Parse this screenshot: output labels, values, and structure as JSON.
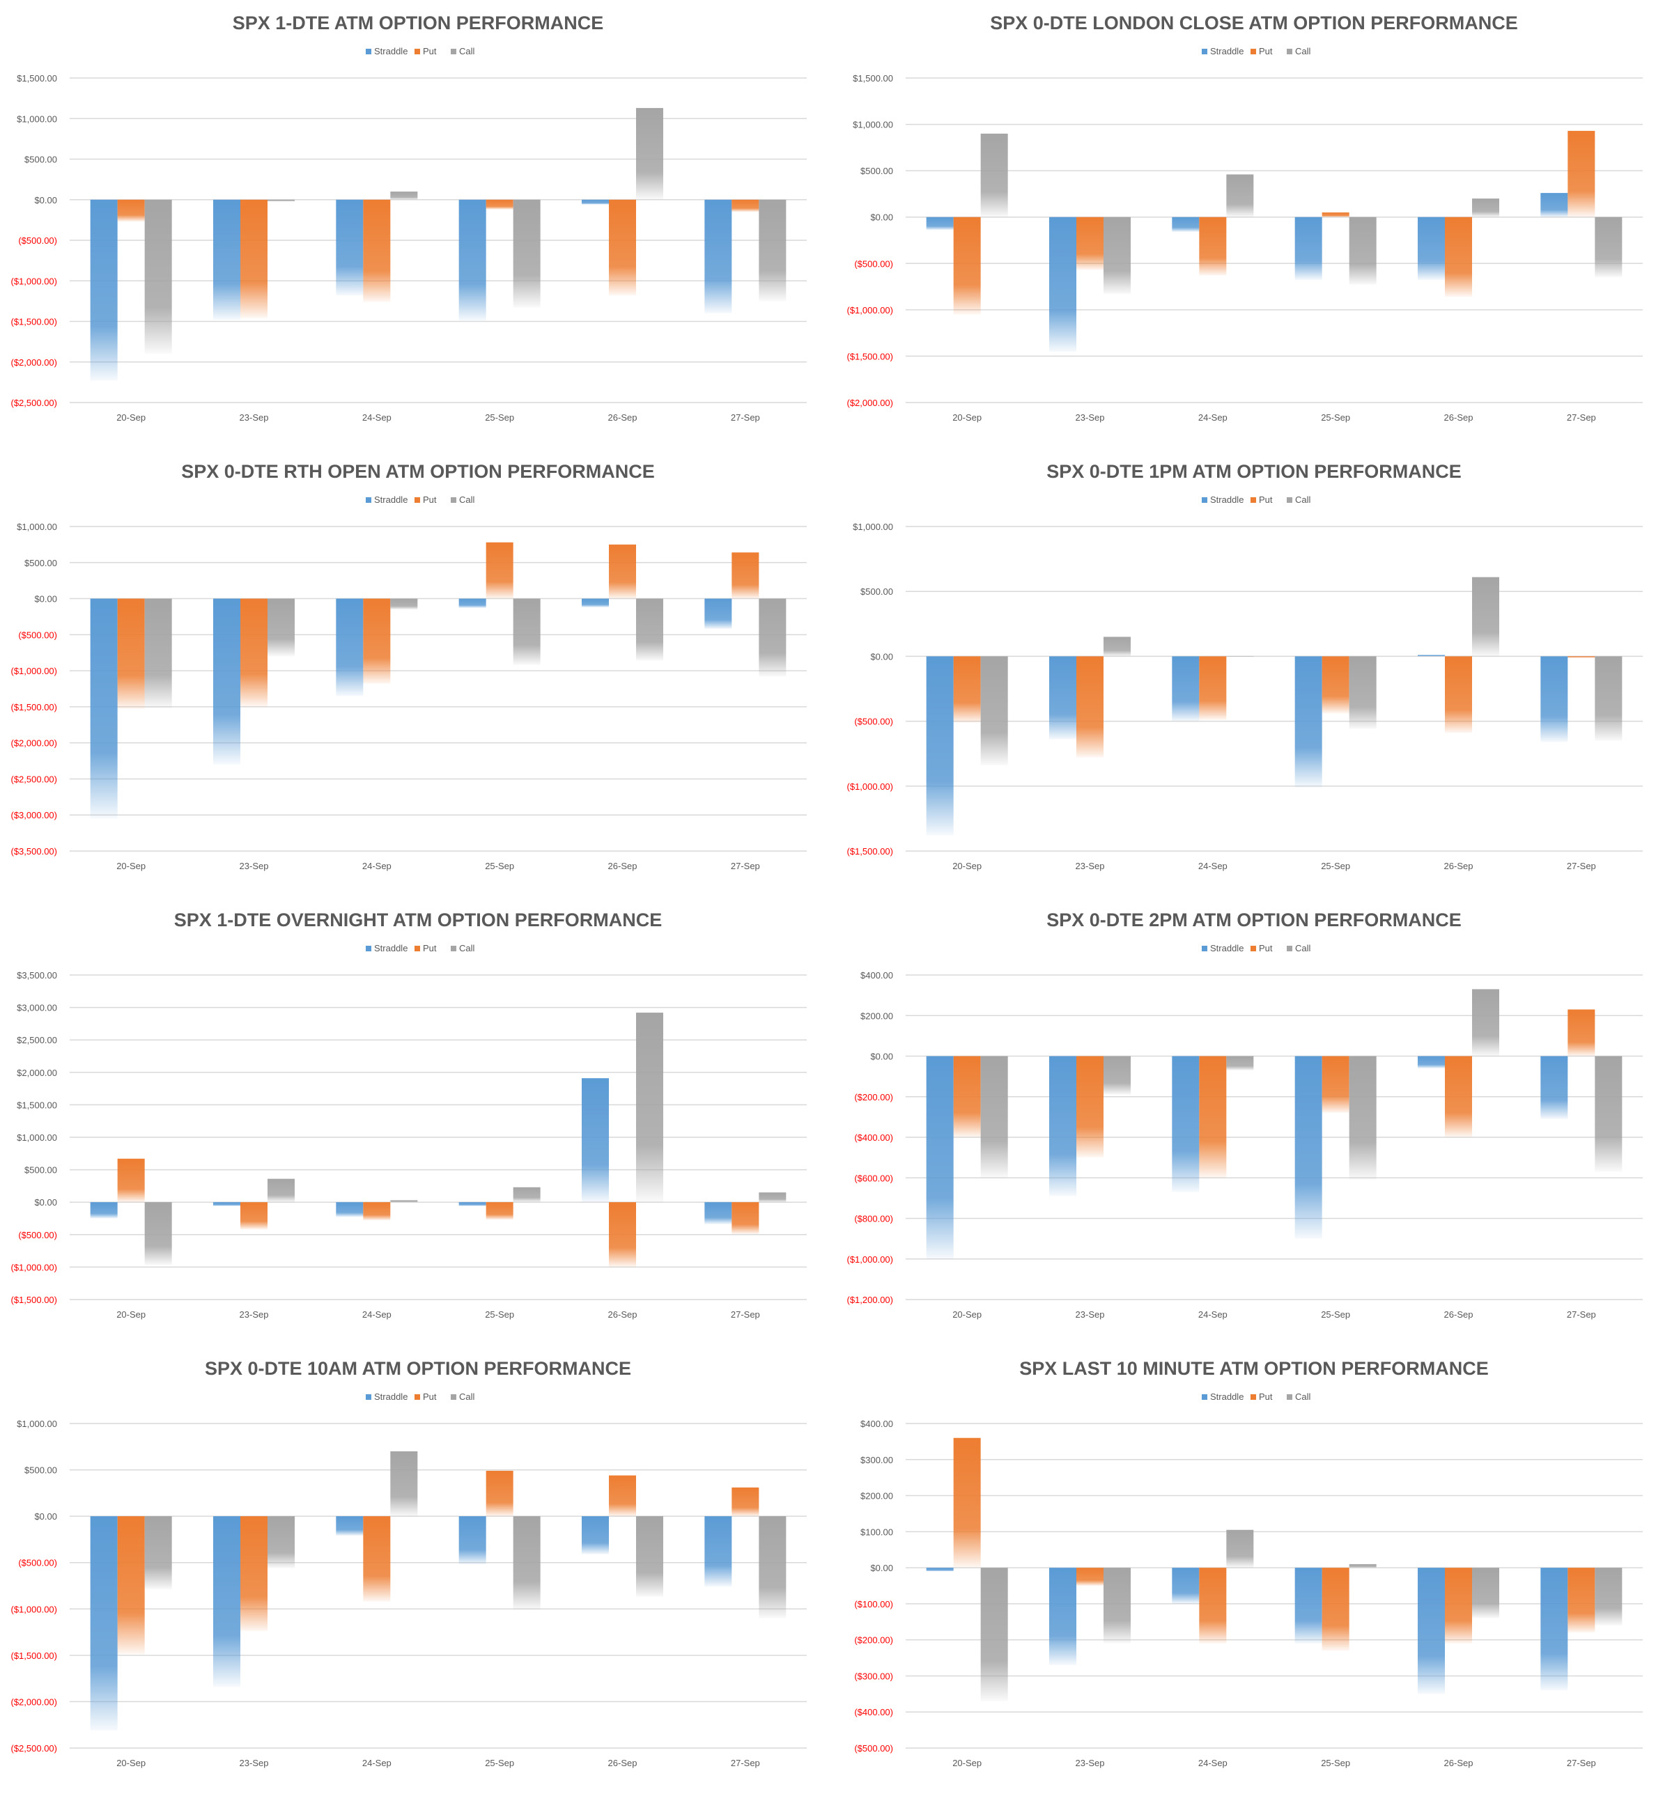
{
  "colors": {
    "straddle": "#5b9bd5",
    "put": "#ed7d31",
    "call": "#a5a5a5",
    "negative_label": "#ff0000",
    "positive_label": "#595959",
    "gridline": "#d9d9d9",
    "title": "#595959"
  },
  "legend": [
    "Straddle",
    "Put",
    "Call"
  ],
  "chart_data": [
    {
      "type": "bar",
      "title": "SPX 1-DTE ATM OPTION PERFORMANCE",
      "categories": [
        "20-Sep",
        "23-Sep",
        "24-Sep",
        "25-Sep",
        "26-Sep",
        "27-Sep"
      ],
      "series": [
        {
          "name": "Straddle",
          "values": [
            -2230,
            -1480,
            -1180,
            -1490,
            -60,
            -1400
          ]
        },
        {
          "name": "Put",
          "values": [
            -270,
            -1460,
            -1260,
            -120,
            -1180,
            -150
          ]
        },
        {
          "name": "Call",
          "values": [
            -1900,
            -20,
            100,
            -1330,
            1130,
            -1250
          ]
        }
      ],
      "ylim": [
        -2500,
        1500
      ],
      "yticks": [
        1500,
        1000,
        500,
        0,
        -500,
        -1000,
        -1500,
        -2000,
        -2500
      ],
      "ytick_labels": [
        "$1,500.00",
        "$1,000.00",
        "$500.00",
        "$0.00",
        "($500.00)",
        "($1,000.00)",
        "($1,500.00)",
        "($2,000.00)",
        "($2,500.00)"
      ]
    },
    {
      "type": "bar",
      "title": "SPX 0-DTE  LONDON CLOSE ATM OPTION PERFORMANCE",
      "categories": [
        "20-Sep",
        "23-Sep",
        "24-Sep",
        "25-Sep",
        "26-Sep",
        "27-Sep"
      ],
      "series": [
        {
          "name": "Straddle",
          "values": [
            -140,
            -1450,
            -160,
            -680,
            -680,
            260
          ]
        },
        {
          "name": "Put",
          "values": [
            -1050,
            -570,
            -630,
            50,
            -860,
            930
          ]
        },
        {
          "name": "Call",
          "values": [
            900,
            -830,
            460,
            -730,
            200,
            -650
          ]
        }
      ],
      "ylim": [
        -2000,
        1500
      ],
      "yticks": [
        1500,
        1000,
        500,
        0,
        -500,
        -1000,
        -1500,
        -2000
      ],
      "ytick_labels": [
        "$1,500.00",
        "$1,000.00",
        "$500.00",
        "$0.00",
        "($500.00)",
        "($1,000.00)",
        "($1,500.00)",
        "($2,000.00)"
      ]
    },
    {
      "type": "bar",
      "title": "SPX 0-DTE RTH OPEN ATM OPTION PERFORMANCE",
      "categories": [
        "20-Sep",
        "23-Sep",
        "24-Sep",
        "25-Sep",
        "26-Sep",
        "27-Sep"
      ],
      "series": [
        {
          "name": "Straddle",
          "values": [
            -3050,
            -2300,
            -1350,
            -130,
            -120,
            -420
          ]
        },
        {
          "name": "Put",
          "values": [
            -1530,
            -1500,
            -1180,
            780,
            750,
            640
          ]
        },
        {
          "name": "Call",
          "values": [
            -1520,
            -800,
            -150,
            -920,
            -860,
            -1080
          ]
        }
      ],
      "ylim": [
        -3500,
        1000
      ],
      "yticks": [
        1000,
        500,
        0,
        -500,
        -1000,
        -1500,
        -2000,
        -2500,
        -3000,
        -3500
      ],
      "ytick_labels": [
        "$1,000.00",
        "$500.00",
        "$0.00",
        "($500.00)",
        "($1,000.00)",
        "($1,500.00)",
        "($2,000.00)",
        "($2,500.00)",
        "($3,000.00)",
        "($3,500.00)"
      ]
    },
    {
      "type": "bar",
      "title": "SPX 0-DTE 1PM ATM OPTION PERFORMANCE",
      "categories": [
        "20-Sep",
        "23-Sep",
        "24-Sep",
        "25-Sep",
        "26-Sep",
        "27-Sep"
      ],
      "series": [
        {
          "name": "Straddle",
          "values": [
            -1380,
            -640,
            -500,
            -1010,
            10,
            -660
          ]
        },
        {
          "name": "Put",
          "values": [
            -510,
            -780,
            -490,
            -440,
            -590,
            -10
          ]
        },
        {
          "name": "Call",
          "values": [
            -840,
            150,
            0,
            -560,
            610,
            -650
          ]
        }
      ],
      "ylim": [
        -1500,
        1000
      ],
      "yticks": [
        1000,
        500,
        0,
        -500,
        -1000,
        -1500
      ],
      "ytick_labels": [
        "$1,000.00",
        "$500.00",
        "$0.00",
        "($500.00)",
        "($1,000.00)",
        "($1,500.00)"
      ]
    },
    {
      "type": "bar",
      "title": "SPX 1-DTE OVERNIGHT ATM OPTION PERFORMANCE",
      "categories": [
        "20-Sep",
        "23-Sep",
        "24-Sep",
        "25-Sep",
        "26-Sep",
        "27-Sep"
      ],
      "series": [
        {
          "name": "Straddle",
          "values": [
            -250,
            -60,
            -230,
            -60,
            1910,
            -340
          ]
        },
        {
          "name": "Put",
          "values": [
            670,
            -420,
            -280,
            -270,
            -1000,
            -490
          ]
        },
        {
          "name": "Call",
          "values": [
            -970,
            360,
            30,
            230,
            2920,
            150
          ]
        }
      ],
      "ylim": [
        -1500,
        3500
      ],
      "yticks": [
        3500,
        3000,
        2500,
        2000,
        1500,
        1000,
        500,
        0,
        -500,
        -1000,
        -1500
      ],
      "ytick_labels": [
        "$3,500.00",
        "$3,000.00",
        "$2,500.00",
        "$2,000.00",
        "$1,500.00",
        "$1,000.00",
        "$500.00",
        "$0.00",
        "($500.00)",
        "($1,000.00)",
        "($1,500.00)"
      ]
    },
    {
      "type": "bar",
      "title": "SPX 0-DTE 2PM ATM OPTION PERFORMANCE",
      "categories": [
        "20-Sep",
        "23-Sep",
        "24-Sep",
        "25-Sep",
        "26-Sep",
        "27-Sep"
      ],
      "series": [
        {
          "name": "Straddle",
          "values": [
            -1000,
            -690,
            -670,
            -900,
            -60,
            -310
          ]
        },
        {
          "name": "Put",
          "values": [
            -400,
            -500,
            -600,
            -280,
            -400,
            230
          ]
        },
        {
          "name": "Call",
          "values": [
            -600,
            -190,
            -70,
            -610,
            330,
            -570
          ]
        }
      ],
      "ylim": [
        -1200,
        400
      ],
      "yticks": [
        400,
        200,
        0,
        -200,
        -400,
        -600,
        -800,
        -1000,
        -1200
      ],
      "ytick_labels": [
        "$400.00",
        "$200.00",
        "$0.00",
        "($200.00)",
        "($400.00)",
        "($600.00)",
        "($800.00)",
        "($1,000.00)",
        "($1,200.00)"
      ]
    },
    {
      "type": "bar",
      "title": "SPX 0-DTE 10AM ATM OPTION PERFORMANCE",
      "categories": [
        "20-Sep",
        "23-Sep",
        "24-Sep",
        "25-Sep",
        "26-Sep",
        "27-Sep"
      ],
      "series": [
        {
          "name": "Straddle",
          "values": [
            -2310,
            -1840,
            -210,
            -520,
            -410,
            -760
          ]
        },
        {
          "name": "Put",
          "values": [
            -1490,
            -1240,
            -920,
            490,
            440,
            310
          ]
        },
        {
          "name": "Call",
          "values": [
            -790,
            -560,
            700,
            -1010,
            -870,
            -1100
          ]
        }
      ],
      "ylim": [
        -2500,
        1000
      ],
      "yticks": [
        1000,
        500,
        0,
        -500,
        -1000,
        -1500,
        -2000,
        -2500
      ],
      "ytick_labels": [
        "$1,000.00",
        "$500.00",
        "$0.00",
        "($500.00)",
        "($1,000.00)",
        "($1,500.00)",
        "($2,000.00)",
        "($2,500.00)"
      ]
    },
    {
      "type": "bar",
      "title": "SPX LAST 10 MINUTE ATM OPTION PERFORMANCE",
      "categories": [
        "20-Sep",
        "23-Sep",
        "24-Sep",
        "25-Sep",
        "26-Sep",
        "27-Sep"
      ],
      "series": [
        {
          "name": "Straddle",
          "values": [
            -10,
            -270,
            -100,
            -210,
            -350,
            -340
          ]
        },
        {
          "name": "Put",
          "values": [
            360,
            -50,
            -210,
            -230,
            -210,
            -180
          ]
        },
        {
          "name": "Call",
          "values": [
            -370,
            -210,
            105,
            10,
            -140,
            -160
          ]
        }
      ],
      "ylim": [
        -500,
        400
      ],
      "yticks": [
        400,
        300,
        200,
        100,
        0,
        -100,
        -200,
        -300,
        -400,
        -500
      ],
      "ytick_labels": [
        "$400.00",
        "$300.00",
        "$200.00",
        "$100.00",
        "$0.00",
        "($100.00)",
        "($200.00)",
        "($300.00)",
        "($400.00)",
        "($500.00)"
      ]
    }
  ]
}
